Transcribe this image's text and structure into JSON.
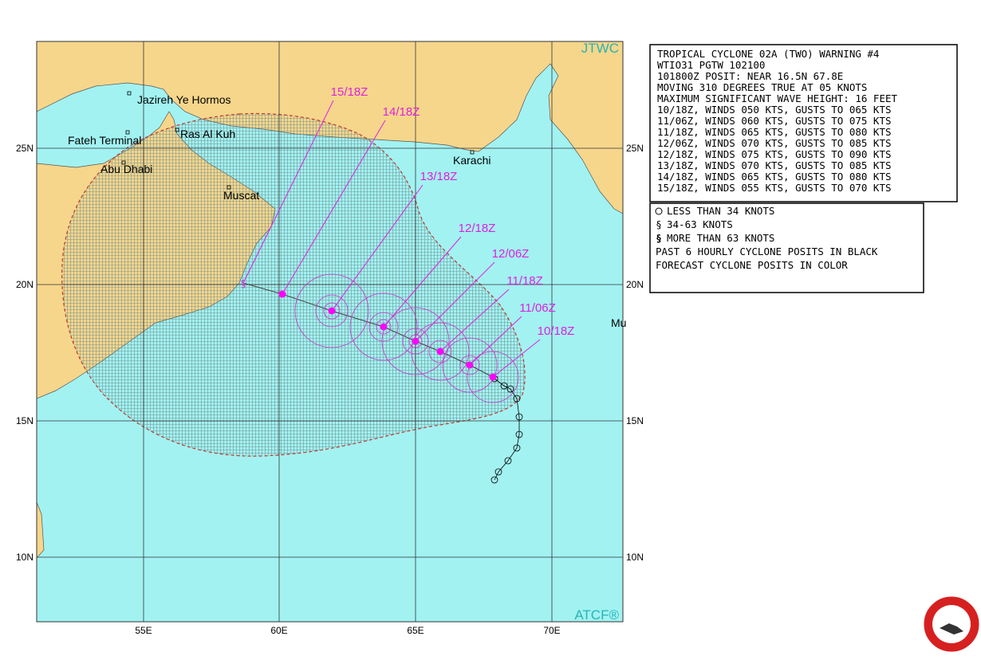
{
  "map": {
    "agency": "JTWC",
    "credit": "ATCF®",
    "places": [
      "Jazireh Ye Hormos",
      "Ras Al Kuh",
      "Fateh Terminal",
      "Abu Dhabi",
      "Muscat",
      "Karachi",
      "Mu"
    ],
    "lat_labels": [
      "25N",
      "20N",
      "15N",
      "10N"
    ],
    "lon_labels": [
      "55E",
      "60E",
      "65E",
      "70E"
    ],
    "forecast_labels": [
      "15/18Z",
      "14/18Z",
      "13/18Z",
      "12/18Z",
      "12/06Z",
      "11/18Z",
      "11/06Z",
      "10/18Z"
    ]
  },
  "warning": {
    "lines": [
      "TROPICAL CYCLONE 02A (TWO) WARNING #4",
      "WTIO31 PGTW 102100",
      "101800Z POSIT: NEAR 16.5N 67.8E",
      "MOVING 310 DEGREES TRUE AT 05 KNOTS",
      "MAXIMUM SIGNIFICANT WAVE HEIGHT: 16 FEET",
      "10/18Z, WINDS 050 KTS, GUSTS TO 065 KTS",
      "11/06Z, WINDS 060 KTS, GUSTS TO 075 KTS",
      "11/18Z, WINDS 065 KTS, GUSTS TO 080 KTS",
      "12/06Z, WINDS 070 KTS, GUSTS TO 085 KTS",
      "12/18Z, WINDS 075 KTS, GUSTS TO 090 KTS",
      "13/18Z, WINDS 070 KTS, GUSTS TO 085 KTS",
      "14/18Z, WINDS 065 KTS, GUSTS TO 080 KTS",
      "15/18Z, WINDS 055 KTS, GUSTS TO 070 KTS"
    ]
  },
  "legend": {
    "lines": [
      "LESS THAN 34 KNOTS",
      "34-63 KNOTS",
      "MORE THAN 63 KNOTS",
      "PAST 6 HOURLY CYCLONE POSITS IN BLACK",
      "FORECAST CYCLONE POSITS IN COLOR"
    ]
  }
}
